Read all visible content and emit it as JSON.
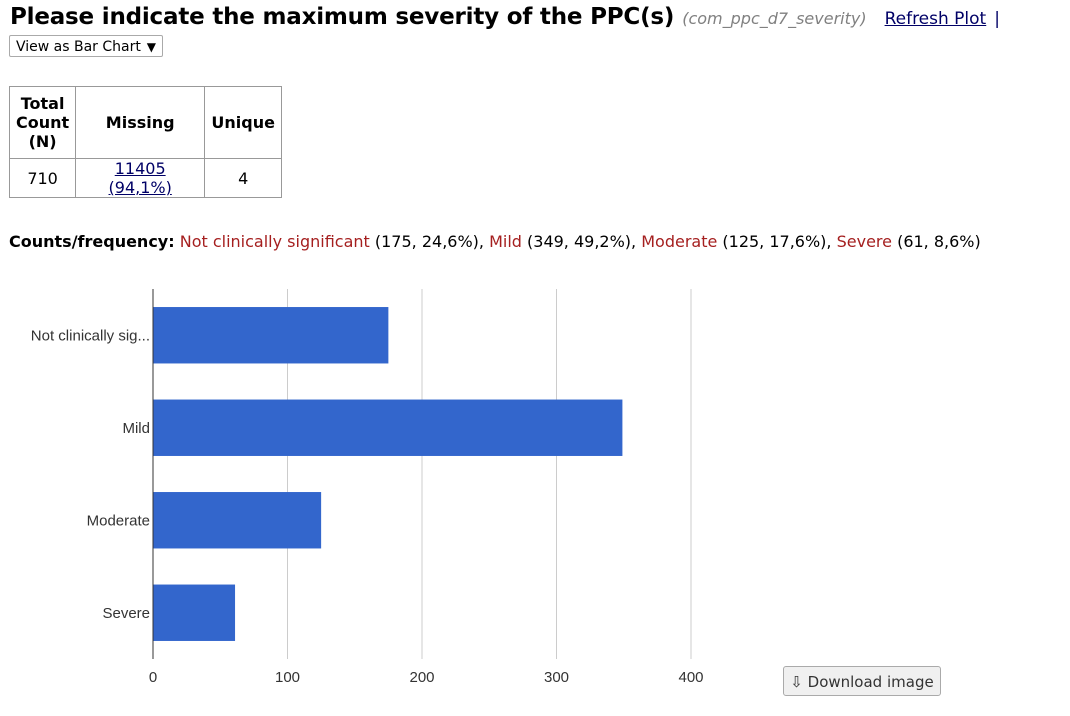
{
  "header": {
    "title": "Please indicate the maximum severity of the PPC(s)",
    "variable_name": "(com_ppc_d7_severity)",
    "refresh_label": "Refresh Plot",
    "separator": "|"
  },
  "view_select": {
    "value": "View as Bar Chart",
    "arrow": "▼"
  },
  "stats_table": {
    "headers": {
      "total_count_line1": "Total",
      "total_count_line2": "Count",
      "total_count_line3": "(N)",
      "missing": "Missing",
      "unique": "Unique"
    },
    "values": {
      "total_count": "710",
      "missing": "11405 (94,1%)",
      "unique": "4"
    }
  },
  "frequency": {
    "label": "Counts/frequency:",
    "items": [
      {
        "category": "Not clinically significant",
        "detail": " (175, 24,6%), "
      },
      {
        "category": "Mild",
        "detail": " (349, 49,2%), "
      },
      {
        "category": "Moderate",
        "detail": " (125, 17,6%), "
      },
      {
        "category": "Severe",
        "detail": " (61, 8,6%)"
      }
    ]
  },
  "chart_data": {
    "type": "bar",
    "orientation": "horizontal",
    "categories": [
      "Not clinically sig...",
      "Mild",
      "Moderate",
      "Severe"
    ],
    "values": [
      175,
      349,
      125,
      61
    ],
    "xlim": [
      0,
      400
    ],
    "xticks": [
      "0",
      "100",
      "200",
      "300",
      "400"
    ],
    "grid": true,
    "bar_color": "#3366cc"
  },
  "download": {
    "icon": "download-icon",
    "label": "Download image"
  }
}
